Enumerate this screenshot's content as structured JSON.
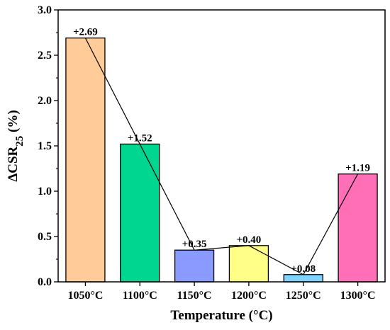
{
  "chart_data": {
    "type": "bar",
    "categories": [
      "1050°C",
      "1100°C",
      "1150°C",
      "1200°C",
      "1250°C",
      "1300°C"
    ],
    "values": [
      2.69,
      1.52,
      0.35,
      0.4,
      0.08,
      1.19
    ],
    "data_labels": [
      "+2.69",
      "+1.52",
      "+0.35",
      "+0.40",
      "+0.08",
      "+1.19"
    ],
    "xlabel": "Temperature (°C)",
    "ylabel": {
      "main": "ΔCSR",
      "sub": "25",
      "unit": " (%)"
    },
    "ylim": [
      0,
      3.0
    ],
    "yticks": [
      "0.0",
      "0.5",
      "1.0",
      "1.5",
      "2.0",
      "2.5",
      "3.0"
    ],
    "grid": false,
    "connecting_line": true,
    "colors": [
      "#FFCC99",
      "#00D68F",
      "#8A9AFF",
      "#FFFF88",
      "#7FD4FF",
      "#FF6FB8"
    ]
  }
}
